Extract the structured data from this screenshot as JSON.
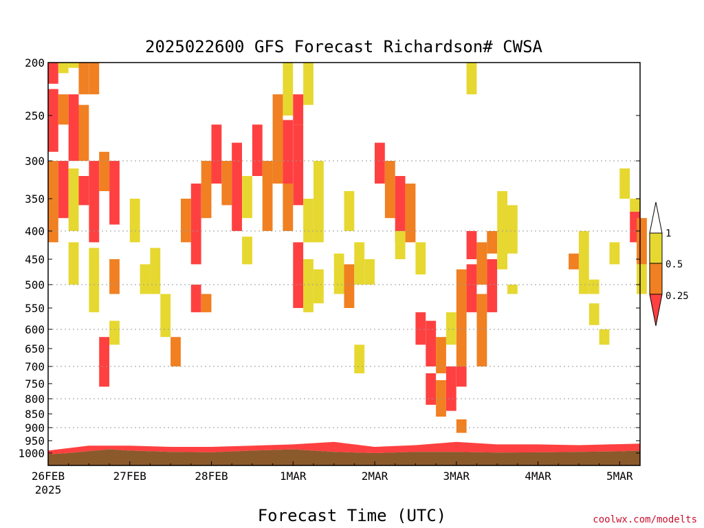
{
  "chart_data": {
    "type": "heatmap",
    "title": "2025022600 GFS Forecast Richardson# CWSA",
    "xlabel": "Forecast Time (UTC)",
    "credit": "coolwx.com/modelts",
    "x_range_hours": [
      0,
      174
    ],
    "y_ticks": [
      "200",
      "250",
      "300",
      "350",
      "400",
      "450",
      "500",
      "550",
      "600",
      "650",
      "700",
      "750",
      "800",
      "850",
      "900",
      "950",
      "1000"
    ],
    "x_ticks": [
      {
        "label": "26FEB",
        "sub": "2025",
        "hour": 0
      },
      {
        "label": "27FEB",
        "sub": "",
        "hour": 24
      },
      {
        "label": "28FEB",
        "sub": "",
        "hour": 48
      },
      {
        "label": "1MAR",
        "sub": "",
        "hour": 72
      },
      {
        "label": "2MAR",
        "sub": "",
        "hour": 96
      },
      {
        "label": "3MAR",
        "sub": "",
        "hour": 120
      },
      {
        "label": "4MAR",
        "sub": "",
        "hour": 144
      },
      {
        "label": "5MAR",
        "sub": "",
        "hour": 168
      }
    ],
    "dotted_grid_levels": [
      300,
      400,
      500,
      600,
      700,
      800,
      900
    ],
    "legend": {
      "labels": [
        "1",
        "0.5",
        "0.25"
      ],
      "colors": {
        "lt025": "#ff4040",
        "c025_05": "#f08022",
        "c05_1": "#e6d830",
        "gt1": "#ffffff",
        "ground": "#8b5a2b"
      }
    },
    "cells": [
      {
        "t": 0,
        "p1": 200,
        "p2": 220,
        "c": "r"
      },
      {
        "t": 3,
        "p1": 200,
        "p2": 210,
        "c": "y"
      },
      {
        "t": 6,
        "p1": 200,
        "p2": 205,
        "c": "y"
      },
      {
        "t": 9,
        "p1": 200,
        "p2": 230,
        "c": "o"
      },
      {
        "t": 12,
        "p1": 200,
        "p2": 230,
        "c": "o"
      },
      {
        "t": 0,
        "p1": 225,
        "p2": 290,
        "c": "r"
      },
      {
        "t": 3,
        "p1": 230,
        "p2": 260,
        "c": "o"
      },
      {
        "t": 6,
        "p1": 230,
        "p2": 300,
        "c": "r"
      },
      {
        "t": 9,
        "p1": 240,
        "p2": 300,
        "c": "o"
      },
      {
        "t": 0,
        "p1": 300,
        "p2": 420,
        "c": "o"
      },
      {
        "t": 3,
        "p1": 300,
        "p2": 380,
        "c": "r"
      },
      {
        "t": 6,
        "p1": 310,
        "p2": 400,
        "c": "y"
      },
      {
        "t": 9,
        "p1": 320,
        "p2": 360,
        "c": "r"
      },
      {
        "t": 12,
        "p1": 300,
        "p2": 420,
        "c": "r"
      },
      {
        "t": 15,
        "p1": 290,
        "p2": 340,
        "c": "o"
      },
      {
        "t": 18,
        "p1": 300,
        "p2": 390,
        "c": "r"
      },
      {
        "t": 6,
        "p1": 420,
        "p2": 500,
        "c": "y"
      },
      {
        "t": 12,
        "p1": 430,
        "p2": 560,
        "c": "y"
      },
      {
        "t": 18,
        "p1": 450,
        "p2": 520,
        "c": "o"
      },
      {
        "t": 24,
        "p1": 350,
        "p2": 420,
        "c": "y"
      },
      {
        "t": 15,
        "p1": 620,
        "p2": 760,
        "c": "r"
      },
      {
        "t": 18,
        "p1": 580,
        "p2": 640,
        "c": "y"
      },
      {
        "t": 27,
        "p1": 460,
        "p2": 520,
        "c": "y"
      },
      {
        "t": 30,
        "p1": 430,
        "p2": 520,
        "c": "y"
      },
      {
        "t": 33,
        "p1": 520,
        "p2": 620,
        "c": "y"
      },
      {
        "t": 36,
        "p1": 620,
        "p2": 700,
        "c": "o"
      },
      {
        "t": 39,
        "p1": 350,
        "p2": 420,
        "c": "o"
      },
      {
        "t": 42,
        "p1": 330,
        "p2": 460,
        "c": "r"
      },
      {
        "t": 45,
        "p1": 300,
        "p2": 380,
        "c": "o"
      },
      {
        "t": 42,
        "p1": 500,
        "p2": 560,
        "c": "r"
      },
      {
        "t": 45,
        "p1": 520,
        "p2": 560,
        "c": "o"
      },
      {
        "t": 48,
        "p1": 260,
        "p2": 330,
        "c": "r"
      },
      {
        "t": 51,
        "p1": 300,
        "p2": 360,
        "c": "o"
      },
      {
        "t": 54,
        "p1": 280,
        "p2": 400,
        "c": "r"
      },
      {
        "t": 57,
        "p1": 320,
        "p2": 380,
        "c": "y"
      },
      {
        "t": 60,
        "p1": 260,
        "p2": 320,
        "c": "r"
      },
      {
        "t": 63,
        "p1": 300,
        "p2": 400,
        "c": "o"
      },
      {
        "t": 57,
        "p1": 410,
        "p2": 460,
        "c": "y"
      },
      {
        "t": 69,
        "p1": 200,
        "p2": 250,
        "c": "y"
      },
      {
        "t": 66,
        "p1": 230,
        "p2": 330,
        "c": "o"
      },
      {
        "t": 69,
        "p1": 255,
        "p2": 330,
        "c": "r"
      },
      {
        "t": 72,
        "p1": 260,
        "p2": 360,
        "c": "r"
      },
      {
        "t": 75,
        "p1": 200,
        "p2": 240,
        "c": "y"
      },
      {
        "t": 72,
        "p1": 230,
        "p2": 260,
        "c": "r"
      },
      {
        "t": 69,
        "p1": 330,
        "p2": 400,
        "c": "o"
      },
      {
        "t": 75,
        "p1": 350,
        "p2": 420,
        "c": "y"
      },
      {
        "t": 78,
        "p1": 300,
        "p2": 420,
        "c": "y"
      },
      {
        "t": 72,
        "p1": 420,
        "p2": 550,
        "c": "r"
      },
      {
        "t": 75,
        "p1": 450,
        "p2": 560,
        "c": "y"
      },
      {
        "t": 78,
        "p1": 470,
        "p2": 540,
        "c": "y"
      },
      {
        "t": 84,
        "p1": 440,
        "p2": 520,
        "c": "y"
      },
      {
        "t": 87,
        "p1": 460,
        "p2": 550,
        "c": "o"
      },
      {
        "t": 90,
        "p1": 420,
        "p2": 500,
        "c": "y"
      },
      {
        "t": 93,
        "p1": 450,
        "p2": 500,
        "c": "y"
      },
      {
        "t": 90,
        "p1": 640,
        "p2": 720,
        "c": "y"
      },
      {
        "t": 87,
        "p1": 340,
        "p2": 400,
        "c": "y"
      },
      {
        "t": 96,
        "p1": 280,
        "p2": 330,
        "c": "r"
      },
      {
        "t": 99,
        "p1": 300,
        "p2": 380,
        "c": "o"
      },
      {
        "t": 102,
        "p1": 320,
        "p2": 420,
        "c": "r"
      },
      {
        "t": 105,
        "p1": 330,
        "p2": 420,
        "c": "o"
      },
      {
        "t": 102,
        "p1": 400,
        "p2": 450,
        "c": "y"
      },
      {
        "t": 108,
        "p1": 420,
        "p2": 480,
        "c": "y"
      },
      {
        "t": 108,
        "p1": 560,
        "p2": 640,
        "c": "r"
      },
      {
        "t": 111,
        "p1": 580,
        "p2": 700,
        "c": "r"
      },
      {
        "t": 114,
        "p1": 620,
        "p2": 720,
        "c": "o"
      },
      {
        "t": 111,
        "p1": 720,
        "p2": 820,
        "c": "r"
      },
      {
        "t": 114,
        "p1": 740,
        "p2": 860,
        "c": "o"
      },
      {
        "t": 117,
        "p1": 700,
        "p2": 840,
        "c": "r"
      },
      {
        "t": 120,
        "p1": 470,
        "p2": 700,
        "c": "o"
      },
      {
        "t": 123,
        "p1": 460,
        "p2": 560,
        "c": "r"
      },
      {
        "t": 126,
        "p1": 420,
        "p2": 500,
        "c": "o"
      },
      {
        "t": 123,
        "p1": 400,
        "p2": 450,
        "c": "r"
      },
      {
        "t": 129,
        "p1": 450,
        "p2": 560,
        "c": "r"
      },
      {
        "t": 126,
        "p1": 520,
        "p2": 700,
        "c": "o"
      },
      {
        "t": 120,
        "p1": 700,
        "p2": 760,
        "c": "r"
      },
      {
        "t": 117,
        "p1": 560,
        "p2": 640,
        "c": "y"
      },
      {
        "t": 123,
        "p1": 200,
        "p2": 230,
        "c": "y"
      },
      {
        "t": 132,
        "p1": 340,
        "p2": 470,
        "c": "y"
      },
      {
        "t": 135,
        "p1": 360,
        "p2": 440,
        "c": "y"
      },
      {
        "t": 129,
        "p1": 400,
        "p2": 440,
        "c": "o"
      },
      {
        "t": 135,
        "p1": 500,
        "p2": 520,
        "c": "y"
      },
      {
        "t": 120,
        "p1": 870,
        "p2": 920,
        "c": "o"
      },
      {
        "t": 153,
        "p1": 440,
        "p2": 470,
        "c": "o"
      },
      {
        "t": 156,
        "p1": 400,
        "p2": 520,
        "c": "y"
      },
      {
        "t": 159,
        "p1": 490,
        "p2": 520,
        "c": "y"
      },
      {
        "t": 159,
        "p1": 540,
        "p2": 590,
        "c": "y"
      },
      {
        "t": 162,
        "p1": 600,
        "p2": 640,
        "c": "y"
      },
      {
        "t": 168,
        "p1": 310,
        "p2": 350,
        "c": "y"
      },
      {
        "t": 171,
        "p1": 370,
        "p2": 420,
        "c": "r"
      },
      {
        "t": 173,
        "p1": 380,
        "p2": 460,
        "c": "o"
      },
      {
        "t": 173,
        "p1": 460,
        "p2": 520,
        "c": "y"
      },
      {
        "t": 171,
        "p1": 350,
        "p2": 370,
        "c": "y"
      },
      {
        "t": 165,
        "p1": 420,
        "p2": 460,
        "c": "y"
      }
    ],
    "boundary_layer": [
      {
        "hour": 0,
        "top": 990
      },
      {
        "hour": 12,
        "top": 970
      },
      {
        "hour": 24,
        "top": 970
      },
      {
        "hour": 36,
        "top": 975
      },
      {
        "hour": 48,
        "top": 975
      },
      {
        "hour": 60,
        "top": 970
      },
      {
        "hour": 72,
        "top": 965
      },
      {
        "hour": 84,
        "top": 955
      },
      {
        "hour": 96,
        "top": 975
      },
      {
        "hour": 108,
        "top": 968
      },
      {
        "hour": 120,
        "top": 955
      },
      {
        "hour": 132,
        "top": 965
      },
      {
        "hour": 144,
        "top": 965
      },
      {
        "hour": 156,
        "top": 968
      },
      {
        "hour": 174,
        "top": 962
      }
    ],
    "ground": [
      {
        "hour": 0,
        "p": 1005
      },
      {
        "hour": 6,
        "p": 1000
      },
      {
        "hour": 12,
        "p": 992
      },
      {
        "hour": 18,
        "p": 985
      },
      {
        "hour": 24,
        "p": 990
      },
      {
        "hour": 36,
        "p": 995
      },
      {
        "hour": 48,
        "p": 997
      },
      {
        "hour": 60,
        "p": 990
      },
      {
        "hour": 72,
        "p": 985
      },
      {
        "hour": 84,
        "p": 995
      },
      {
        "hour": 96,
        "p": 1000
      },
      {
        "hour": 108,
        "p": 995
      },
      {
        "hour": 120,
        "p": 995
      },
      {
        "hour": 132,
        "p": 998
      },
      {
        "hour": 144,
        "p": 997
      },
      {
        "hour": 156,
        "p": 995
      },
      {
        "hour": 168,
        "p": 993
      },
      {
        "hour": 174,
        "p": 990
      }
    ]
  }
}
